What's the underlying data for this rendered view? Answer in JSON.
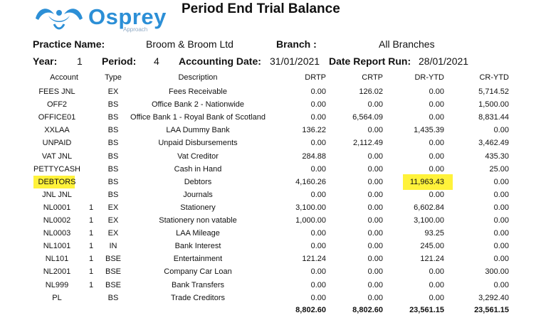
{
  "logo": {
    "name": "Osprey",
    "subtitle": "Approach"
  },
  "title": "Period End Trial Balance",
  "header": {
    "practice_label": "Practice Name:",
    "practice_value": "Broom & Broom Ltd",
    "branch_label": "Branch :",
    "branch_value": "All Branches",
    "year_label": "Year:",
    "year_value": "1",
    "period_label": "Period:",
    "period_value": "4",
    "accounting_date_label": "Accounting Date:",
    "accounting_date_value": "31/01/2021",
    "report_run_label": "Date Report Run:",
    "report_run_value": "28/01/2021"
  },
  "columns": {
    "account": "Account",
    "type": "Type",
    "description": "Description",
    "drtp": "DRTP",
    "crtp": "CRTP",
    "dr_ytd": "DR-YTD",
    "cr_ytd": "CR-YTD"
  },
  "rows": [
    {
      "account": "FEES JNL",
      "num": "",
      "type": "EX",
      "description": "Fees Receivable",
      "drtp": "0.00",
      "crtp": "126.02",
      "dr_ytd": "0.00",
      "cr_ytd": "5,714.52"
    },
    {
      "account": "OFF2",
      "num": "",
      "type": "BS",
      "description": "Office Bank 2 - Nationwide",
      "drtp": "0.00",
      "crtp": "0.00",
      "dr_ytd": "0.00",
      "cr_ytd": "1,500.00"
    },
    {
      "account": "OFFICE01",
      "num": "",
      "type": "BS",
      "description": "Office Bank 1 - Royal Bank of Scotland",
      "drtp": "0.00",
      "crtp": "6,564.09",
      "dr_ytd": "0.00",
      "cr_ytd": "8,831.44"
    },
    {
      "account": "XXLAA",
      "num": "",
      "type": "BS",
      "description": "LAA Dummy Bank",
      "drtp": "136.22",
      "crtp": "0.00",
      "dr_ytd": "1,435.39",
      "cr_ytd": "0.00"
    },
    {
      "account": "UNPAID",
      "num": "",
      "type": "BS",
      "description": "Unpaid Disbursements",
      "drtp": "0.00",
      "crtp": "2,112.49",
      "dr_ytd": "0.00",
      "cr_ytd": "3,462.49"
    },
    {
      "account": "VAT JNL",
      "num": "",
      "type": "BS",
      "description": "Vat Creditor",
      "drtp": "284.88",
      "crtp": "0.00",
      "dr_ytd": "0.00",
      "cr_ytd": "435.30"
    },
    {
      "account": "PETTYCASH",
      "num": "",
      "type": "BS",
      "description": "Cash in Hand",
      "drtp": "0.00",
      "crtp": "0.00",
      "dr_ytd": "0.00",
      "cr_ytd": "25.00"
    },
    {
      "account": "DEBTORS",
      "num": "",
      "type": "BS",
      "description": "Debtors",
      "drtp": "4,160.26",
      "crtp": "0.00",
      "dr_ytd": "11,963.43",
      "cr_ytd": "0.00",
      "highlight": true
    },
    {
      "account": "JNL JNL",
      "num": "",
      "type": "BS",
      "description": "Journals",
      "drtp": "0.00",
      "crtp": "0.00",
      "dr_ytd": "0.00",
      "cr_ytd": "0.00"
    },
    {
      "account": "NL0001",
      "num": "1",
      "type": "EX",
      "description": "Stationery",
      "drtp": "3,100.00",
      "crtp": "0.00",
      "dr_ytd": "6,602.84",
      "cr_ytd": "0.00"
    },
    {
      "account": "NL0002",
      "num": "1",
      "type": "EX",
      "description": "Stationery non vatable",
      "drtp": "1,000.00",
      "crtp": "0.00",
      "dr_ytd": "3,100.00",
      "cr_ytd": "0.00"
    },
    {
      "account": "NL0003",
      "num": "1",
      "type": "EX",
      "description": "LAA Mileage",
      "drtp": "0.00",
      "crtp": "0.00",
      "dr_ytd": "93.25",
      "cr_ytd": "0.00"
    },
    {
      "account": "NL1001",
      "num": "1",
      "type": "IN",
      "description": "Bank Interest",
      "drtp": "0.00",
      "crtp": "0.00",
      "dr_ytd": "245.00",
      "cr_ytd": "0.00"
    },
    {
      "account": "NL101",
      "num": "1",
      "type": "BSE",
      "description": "Entertainment",
      "drtp": "121.24",
      "crtp": "0.00",
      "dr_ytd": "121.24",
      "cr_ytd": "0.00"
    },
    {
      "account": "NL2001",
      "num": "1",
      "type": "BSE",
      "description": "Company Car Loan",
      "drtp": "0.00",
      "crtp": "0.00",
      "dr_ytd": "0.00",
      "cr_ytd": "300.00"
    },
    {
      "account": "NL999",
      "num": "1",
      "type": "BSE",
      "description": "Bank Transfers",
      "drtp": "0.00",
      "crtp": "0.00",
      "dr_ytd": "0.00",
      "cr_ytd": "0.00"
    },
    {
      "account": "PL",
      "num": "",
      "type": "BS",
      "description": "Trade Creditors",
      "drtp": "0.00",
      "crtp": "0.00",
      "dr_ytd": "0.00",
      "cr_ytd": "3,292.40"
    }
  ],
  "totals": {
    "drtp": "8,802.60",
    "crtp": "8,802.60",
    "dr_ytd": "23,561.15",
    "cr_ytd": "23,561.15"
  },
  "colors": {
    "logo_blue": "#2c8fd6",
    "highlight": "#fff23a"
  }
}
